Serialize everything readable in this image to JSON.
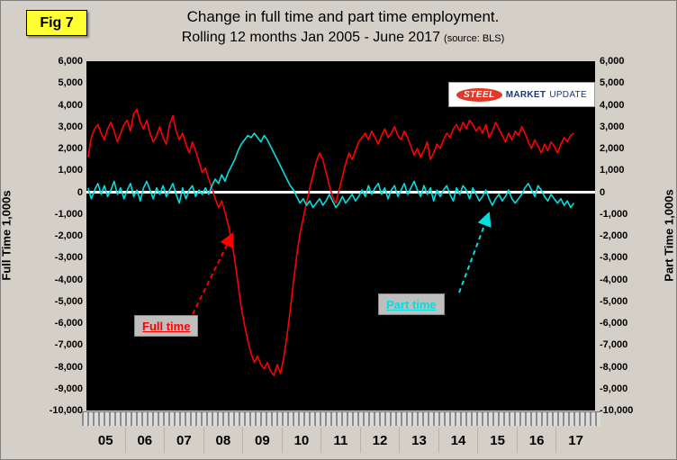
{
  "figure_label": "Fig 7",
  "title_line1": "Change in full time and part time employment.",
  "title_line2": "Rolling 12 months Jan 2005 - June 2017",
  "source": "(source: BLS)",
  "left_axis_title": "Full Time 1,000s",
  "right_axis_title": "Part Time 1,000s",
  "logo": {
    "word1": "STEEL",
    "word2": "MARKET",
    "word3": "UPDATE"
  },
  "annotations": {
    "full_time_label": "Full time",
    "part_time_label": "Part time"
  },
  "colors": {
    "full_time": "#ff0000",
    "part_time": "#00e0e0",
    "zero_line": "#ffffff",
    "plot_background": "#000000",
    "page_background": "#d4d0c8",
    "fig_label_background": "#ffff33"
  },
  "chart_data": {
    "type": "line",
    "title": "Change in full time and part time employment. Rolling 12 months Jan 2005 - June 2017",
    "x_start": "2005-01",
    "x_end": "2017-06",
    "x_years": [
      "05",
      "06",
      "07",
      "08",
      "09",
      "10",
      "11",
      "12",
      "13",
      "14",
      "15",
      "16",
      "17"
    ],
    "y_ticks": [
      6000,
      5000,
      4000,
      3000,
      2000,
      1000,
      0,
      -1000,
      -2000,
      -3000,
      -4000,
      -5000,
      -6000,
      -7000,
      -8000,
      -9000,
      -10000
    ],
    "ylim": [
      -10000,
      6000
    ],
    "ylabel_left": "Full Time 1,000s",
    "ylabel_right": "Part Time 1,000s",
    "grid": false,
    "zero_line": true,
    "series": [
      {
        "name": "Full time",
        "color": "#ff0000",
        "values": [
          1600,
          2500,
          2900,
          3100,
          2700,
          2400,
          2900,
          3200,
          2800,
          2300,
          2700,
          3100,
          3300,
          2800,
          3600,
          3800,
          3200,
          2900,
          3300,
          2700,
          2300,
          2600,
          3000,
          2500,
          2200,
          3100,
          3500,
          2800,
          2400,
          2700,
          2200,
          1800,
          2300,
          1900,
          1400,
          900,
          1100,
          600,
          200,
          -300,
          -700,
          -400,
          -900,
          -1500,
          -2200,
          -3100,
          -4200,
          -5300,
          -6100,
          -6800,
          -7400,
          -7800,
          -7500,
          -7900,
          -8100,
          -7800,
          -8200,
          -8400,
          -7900,
          -8300,
          -7600,
          -6600,
          -5400,
          -4100,
          -2900,
          -1900,
          -1200,
          -500,
          200,
          800,
          1400,
          1800,
          1500,
          900,
          300,
          -200,
          -500,
          100,
          700,
          1300,
          1800,
          1500,
          1900,
          2300,
          2500,
          2700,
          2400,
          2800,
          2500,
          2200,
          2600,
          2900,
          2500,
          2700,
          3000,
          2600,
          2400,
          2800,
          2500,
          2100,
          1700,
          2000,
          1600,
          1900,
          2300,
          1500,
          1800,
          2200,
          2000,
          2400,
          2700,
          2500,
          2900,
          3100,
          2800,
          3200,
          2900,
          3300,
          3100,
          2800,
          3000,
          2700,
          3100,
          2500,
          2800,
          3200,
          2900,
          2600,
          2300,
          2700,
          2400,
          2800,
          2600,
          3000,
          2700,
          2300,
          2000,
          2400,
          2100,
          1800,
          2200,
          1900,
          2300,
          2100,
          1800,
          2200,
          2500,
          2300,
          2600,
          2700
        ]
      },
      {
        "name": "Part time",
        "color": "#00e0e0",
        "values": [
          200,
          -300,
          100,
          400,
          -100,
          300,
          -200,
          100,
          500,
          -100,
          200,
          -300,
          100,
          400,
          -200,
          100,
          -400,
          200,
          500,
          100,
          -300,
          200,
          -100,
          300,
          -200,
          100,
          400,
          -100,
          -500,
          200,
          -300,
          100,
          300,
          -200,
          100,
          -100,
          200,
          -100,
          300,
          600,
          400,
          800,
          500,
          900,
          1200,
          1500,
          1900,
          2200,
          2400,
          2600,
          2500,
          2700,
          2500,
          2300,
          2600,
          2400,
          2100,
          1800,
          1500,
          1200,
          900,
          600,
          300,
          100,
          -200,
          -500,
          -300,
          -600,
          -400,
          -700,
          -500,
          -300,
          -600,
          -400,
          -100,
          -400,
          -700,
          -500,
          -200,
          -500,
          -300,
          -100,
          -400,
          -200,
          100,
          -200,
          300,
          -100,
          200,
          400,
          -100,
          200,
          -300,
          100,
          300,
          -200,
          100,
          400,
          -100,
          200,
          500,
          100,
          -200,
          300,
          -100,
          200,
          -400,
          100,
          -200,
          100,
          300,
          -100,
          -400,
          200,
          -100,
          300,
          100,
          -300,
          200,
          -100,
          -400,
          -200,
          100,
          -300,
          -600,
          -300,
          -100,
          -400,
          -200,
          100,
          -300,
          -500,
          -300,
          -100,
          200,
          400,
          100,
          -200,
          300,
          100,
          -200,
          -400,
          -100,
          -300,
          -500,
          -300,
          -600,
          -400,
          -700,
          -500
        ]
      }
    ]
  }
}
